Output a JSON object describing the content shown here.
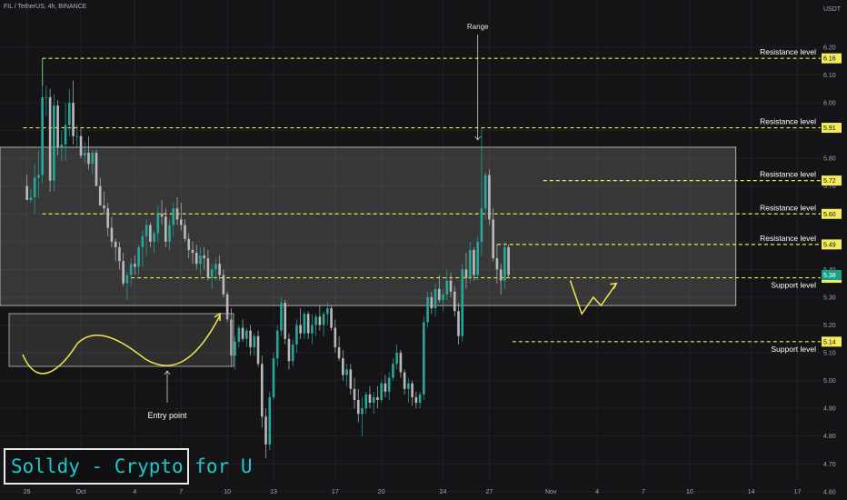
{
  "header": {
    "symbol_line": "FIL / TetherUS, 4h, BINANCE"
  },
  "watermark": "Solldy - Crypto for U",
  "colors": {
    "background": "#141416",
    "grid": "#1f2125",
    "up": "#26a69a",
    "down": "#b9b9b9",
    "level_line": "#f2e84c",
    "price_tag": "#f4ec5b",
    "annotation": "#ffffff",
    "range_box_fill": "rgba(128,128,128,0.33)",
    "range_box_stroke": "#cfcfcf"
  },
  "chart_data": {
    "type": "candlestick",
    "timeframe": "4h",
    "y_axis_title": "USDT",
    "y_ticks": [
      6.2,
      6.1,
      6.0,
      5.9,
      5.8,
      5.7,
      5.6,
      5.5,
      5.4,
      5.3,
      5.2,
      5.1,
      5.0,
      4.9,
      4.8,
      4.7,
      4.6
    ],
    "ylim": [
      4.57,
      6.37
    ],
    "x_tick_labels": [
      "26",
      "Oct",
      "4",
      "7",
      "10",
      "13",
      "17",
      "20",
      "24",
      "27",
      "Nov",
      "4",
      "7",
      "10",
      "14",
      "17"
    ],
    "x_tick_bar_index": [
      0,
      14,
      28,
      40,
      52,
      64,
      80,
      92,
      108,
      120,
      136,
      148,
      160,
      172,
      188,
      200
    ],
    "x_range_bars": [
      -7,
      206
    ],
    "levels": [
      {
        "label": "Resistance level",
        "price": 6.16,
        "tag": "6.16",
        "start_bar": 4
      },
      {
        "label": "Resistance level",
        "price": 5.91,
        "tag": "5.91",
        "start_bar": -1
      },
      {
        "label": "Resistance level",
        "price": 5.72,
        "tag": "5.72",
        "start_bar": 134
      },
      {
        "label": "Resistance level",
        "price": 5.6,
        "tag": "5.60",
        "start_bar": 4
      },
      {
        "label": "Resistance level",
        "price": 5.49,
        "tag": "5.49",
        "start_bar": 122
      },
      {
        "label": "Support level",
        "price": 5.37,
        "tag": "5.37",
        "start_bar": 27
      },
      {
        "label": "Support level",
        "price": 5.14,
        "tag": "5.14",
        "start_bar": 126
      }
    ],
    "range_box": {
      "label": "Range",
      "top": 5.84,
      "bottom": 5.27,
      "start_bar": -7,
      "end_bar": 184
    },
    "current_price": {
      "price": 5.38,
      "tag": "5.38"
    },
    "entry_point_label": "Entry point",
    "projection": [
      [
        141,
        5.36
      ],
      [
        144,
        5.24
      ],
      [
        147,
        5.3
      ],
      [
        149,
        5.27
      ],
      [
        153,
        5.35
      ]
    ],
    "candles": [
      [
        5.7,
        5.74,
        5.65,
        5.65
      ],
      [
        5.65,
        5.69,
        5.64,
        5.66
      ],
      [
        5.66,
        5.78,
        5.6,
        5.73
      ],
      [
        5.73,
        5.83,
        5.66,
        5.74
      ],
      [
        5.74,
        6.16,
        5.71,
        6.02
      ],
      [
        6.02,
        6.06,
        5.95,
        6.02
      ],
      [
        6.02,
        6.05,
        5.68,
        5.72
      ],
      [
        5.72,
        6.03,
        5.68,
        5.99
      ],
      [
        5.99,
        6.01,
        5.81,
        5.84
      ],
      [
        5.84,
        5.9,
        5.79,
        5.85
      ],
      [
        5.85,
        6.0,
        5.79,
        5.92
      ],
      [
        5.92,
        6.05,
        5.88,
        6.0
      ],
      [
        6.0,
        6.08,
        5.85,
        5.88
      ],
      [
        5.88,
        5.92,
        5.84,
        5.88
      ],
      [
        5.88,
        5.91,
        5.8,
        5.81
      ],
      [
        5.81,
        5.86,
        5.78,
        5.82
      ],
      [
        5.82,
        5.88,
        5.76,
        5.78
      ],
      [
        5.78,
        5.83,
        5.74,
        5.82
      ],
      [
        5.82,
        5.83,
        5.7,
        5.7
      ],
      [
        5.7,
        5.73,
        5.63,
        5.63
      ],
      [
        5.63,
        5.68,
        5.6,
        5.62
      ],
      [
        5.62,
        5.64,
        5.52,
        5.55
      ],
      [
        5.55,
        5.59,
        5.48,
        5.5
      ],
      [
        5.5,
        5.51,
        5.43,
        5.48
      ],
      [
        5.48,
        5.5,
        5.4,
        5.43
      ],
      [
        5.43,
        5.46,
        5.34,
        5.35
      ],
      [
        5.35,
        5.39,
        5.29,
        5.38
      ],
      [
        5.38,
        5.44,
        5.34,
        5.42
      ],
      [
        5.42,
        5.45,
        5.38,
        5.41
      ],
      [
        5.41,
        5.49,
        5.38,
        5.48
      ],
      [
        5.48,
        5.54,
        5.41,
        5.52
      ],
      [
        5.52,
        5.58,
        5.45,
        5.56
      ],
      [
        5.56,
        5.57,
        5.48,
        5.5
      ],
      [
        5.5,
        5.54,
        5.46,
        5.53
      ],
      [
        5.53,
        5.63,
        5.5,
        5.6
      ],
      [
        5.6,
        5.65,
        5.56,
        5.59
      ],
      [
        5.59,
        5.62,
        5.48,
        5.5
      ],
      [
        5.5,
        5.58,
        5.47,
        5.56
      ],
      [
        5.56,
        5.64,
        5.52,
        5.62
      ],
      [
        5.62,
        5.66,
        5.56,
        5.58
      ],
      [
        5.58,
        5.64,
        5.54,
        5.56
      ],
      [
        5.56,
        5.58,
        5.5,
        5.51
      ],
      [
        5.51,
        5.53,
        5.44,
        5.47
      ],
      [
        5.47,
        5.5,
        5.42,
        5.46
      ],
      [
        5.46,
        5.49,
        5.4,
        5.42
      ],
      [
        5.42,
        5.48,
        5.38,
        5.45
      ],
      [
        5.45,
        5.48,
        5.4,
        5.44
      ],
      [
        5.44,
        5.47,
        5.36,
        5.37
      ],
      [
        5.37,
        5.42,
        5.33,
        5.4
      ],
      [
        5.4,
        5.44,
        5.36,
        5.42
      ],
      [
        5.42,
        5.45,
        5.36,
        5.38
      ],
      [
        5.38,
        5.4,
        5.3,
        5.31
      ],
      [
        5.31,
        5.32,
        5.21,
        5.22
      ],
      [
        5.22,
        5.26,
        5.05,
        5.09
      ],
      [
        5.09,
        5.16,
        5.04,
        5.14
      ],
      [
        5.14,
        5.2,
        5.12,
        5.19
      ],
      [
        5.19,
        5.22,
        5.14,
        5.15
      ],
      [
        5.15,
        5.19,
        5.12,
        5.18
      ],
      [
        5.18,
        5.2,
        5.09,
        5.12
      ],
      [
        5.12,
        5.17,
        5.09,
        5.16
      ],
      [
        5.16,
        5.18,
        5.05,
        5.06
      ],
      [
        5.06,
        5.09,
        4.83,
        4.87
      ],
      [
        4.87,
        4.9,
        4.72,
        4.77
      ],
      [
        4.77,
        4.96,
        4.75,
        4.94
      ],
      [
        4.94,
        5.1,
        4.93,
        5.08
      ],
      [
        5.08,
        5.2,
        5.05,
        5.18
      ],
      [
        5.18,
        5.3,
        5.16,
        5.28
      ],
      [
        5.28,
        5.29,
        5.13,
        5.15
      ],
      [
        5.15,
        5.17,
        5.04,
        5.07
      ],
      [
        5.07,
        5.15,
        5.05,
        5.13
      ],
      [
        5.13,
        5.22,
        5.1,
        5.2
      ],
      [
        5.2,
        5.26,
        5.15,
        5.17
      ],
      [
        5.17,
        5.25,
        5.15,
        5.24
      ],
      [
        5.24,
        5.25,
        5.15,
        5.17
      ],
      [
        5.17,
        5.24,
        5.13,
        5.2
      ],
      [
        5.2,
        5.24,
        5.16,
        5.23
      ],
      [
        5.23,
        5.27,
        5.18,
        5.2
      ],
      [
        5.2,
        5.25,
        5.16,
        5.24
      ],
      [
        5.24,
        5.28,
        5.2,
        5.26
      ],
      [
        5.26,
        5.27,
        5.18,
        5.19
      ],
      [
        5.19,
        5.22,
        5.1,
        5.12
      ],
      [
        5.12,
        5.16,
        5.07,
        5.08
      ],
      [
        5.08,
        5.11,
        5.0,
        5.02
      ],
      [
        5.02,
        5.06,
        4.98,
        5.04
      ],
      [
        5.04,
        5.06,
        4.95,
        4.97
      ],
      [
        4.97,
        5.01,
        4.9,
        4.93
      ],
      [
        4.93,
        4.97,
        4.85,
        4.88
      ],
      [
        4.88,
        4.94,
        4.8,
        4.9
      ],
      [
        4.9,
        4.96,
        4.88,
        4.95
      ],
      [
        4.95,
        4.98,
        4.9,
        4.92
      ],
      [
        4.92,
        4.96,
        4.88,
        4.94
      ],
      [
        4.94,
        4.98,
        4.9,
        4.93
      ],
      [
        4.93,
        5.0,
        4.92,
        4.99
      ],
      [
        4.99,
        5.02,
        4.94,
        4.96
      ],
      [
        4.96,
        5.03,
        4.93,
        5.01
      ],
      [
        5.01,
        5.08,
        5.0,
        5.06
      ],
      [
        5.06,
        5.13,
        5.04,
        5.1
      ],
      [
        5.1,
        5.11,
        5.01,
        5.03
      ],
      [
        5.03,
        5.04,
        4.95,
        4.97
      ],
      [
        4.97,
        5.01,
        4.92,
        4.99
      ],
      [
        4.99,
        5.0,
        4.91,
        4.94
      ],
      [
        4.94,
        4.96,
        4.9,
        4.92
      ],
      [
        4.92,
        4.96,
        4.9,
        4.95
      ],
      [
        4.95,
        5.23,
        4.93,
        5.21
      ],
      [
        5.21,
        5.32,
        5.19,
        5.3
      ],
      [
        5.3,
        5.32,
        5.24,
        5.26
      ],
      [
        5.26,
        5.35,
        5.23,
        5.33
      ],
      [
        5.33,
        5.38,
        5.28,
        5.29
      ],
      [
        5.29,
        5.33,
        5.25,
        5.31
      ],
      [
        5.31,
        5.4,
        5.29,
        5.36
      ],
      [
        5.36,
        5.39,
        5.3,
        5.32
      ],
      [
        5.32,
        5.34,
        5.23,
        5.25
      ],
      [
        5.25,
        5.28,
        5.13,
        5.16
      ],
      [
        5.16,
        5.42,
        5.14,
        5.4
      ],
      [
        5.4,
        5.46,
        5.33,
        5.37
      ],
      [
        5.37,
        5.5,
        5.35,
        5.47
      ],
      [
        5.47,
        5.48,
        5.36,
        5.38
      ],
      [
        5.38,
        5.52,
        5.36,
        5.5
      ],
      [
        5.5,
        5.91,
        5.45,
        5.62
      ],
      [
        5.62,
        5.75,
        5.58,
        5.74
      ],
      [
        5.74,
        5.76,
        5.56,
        5.58
      ],
      [
        5.58,
        5.62,
        5.43,
        5.44
      ],
      [
        5.44,
        5.49,
        5.35,
        5.4
      ],
      [
        5.4,
        5.42,
        5.31,
        5.36
      ],
      [
        5.36,
        5.5,
        5.33,
        5.48
      ],
      [
        5.48,
        5.49,
        5.37,
        5.38
      ]
    ]
  }
}
